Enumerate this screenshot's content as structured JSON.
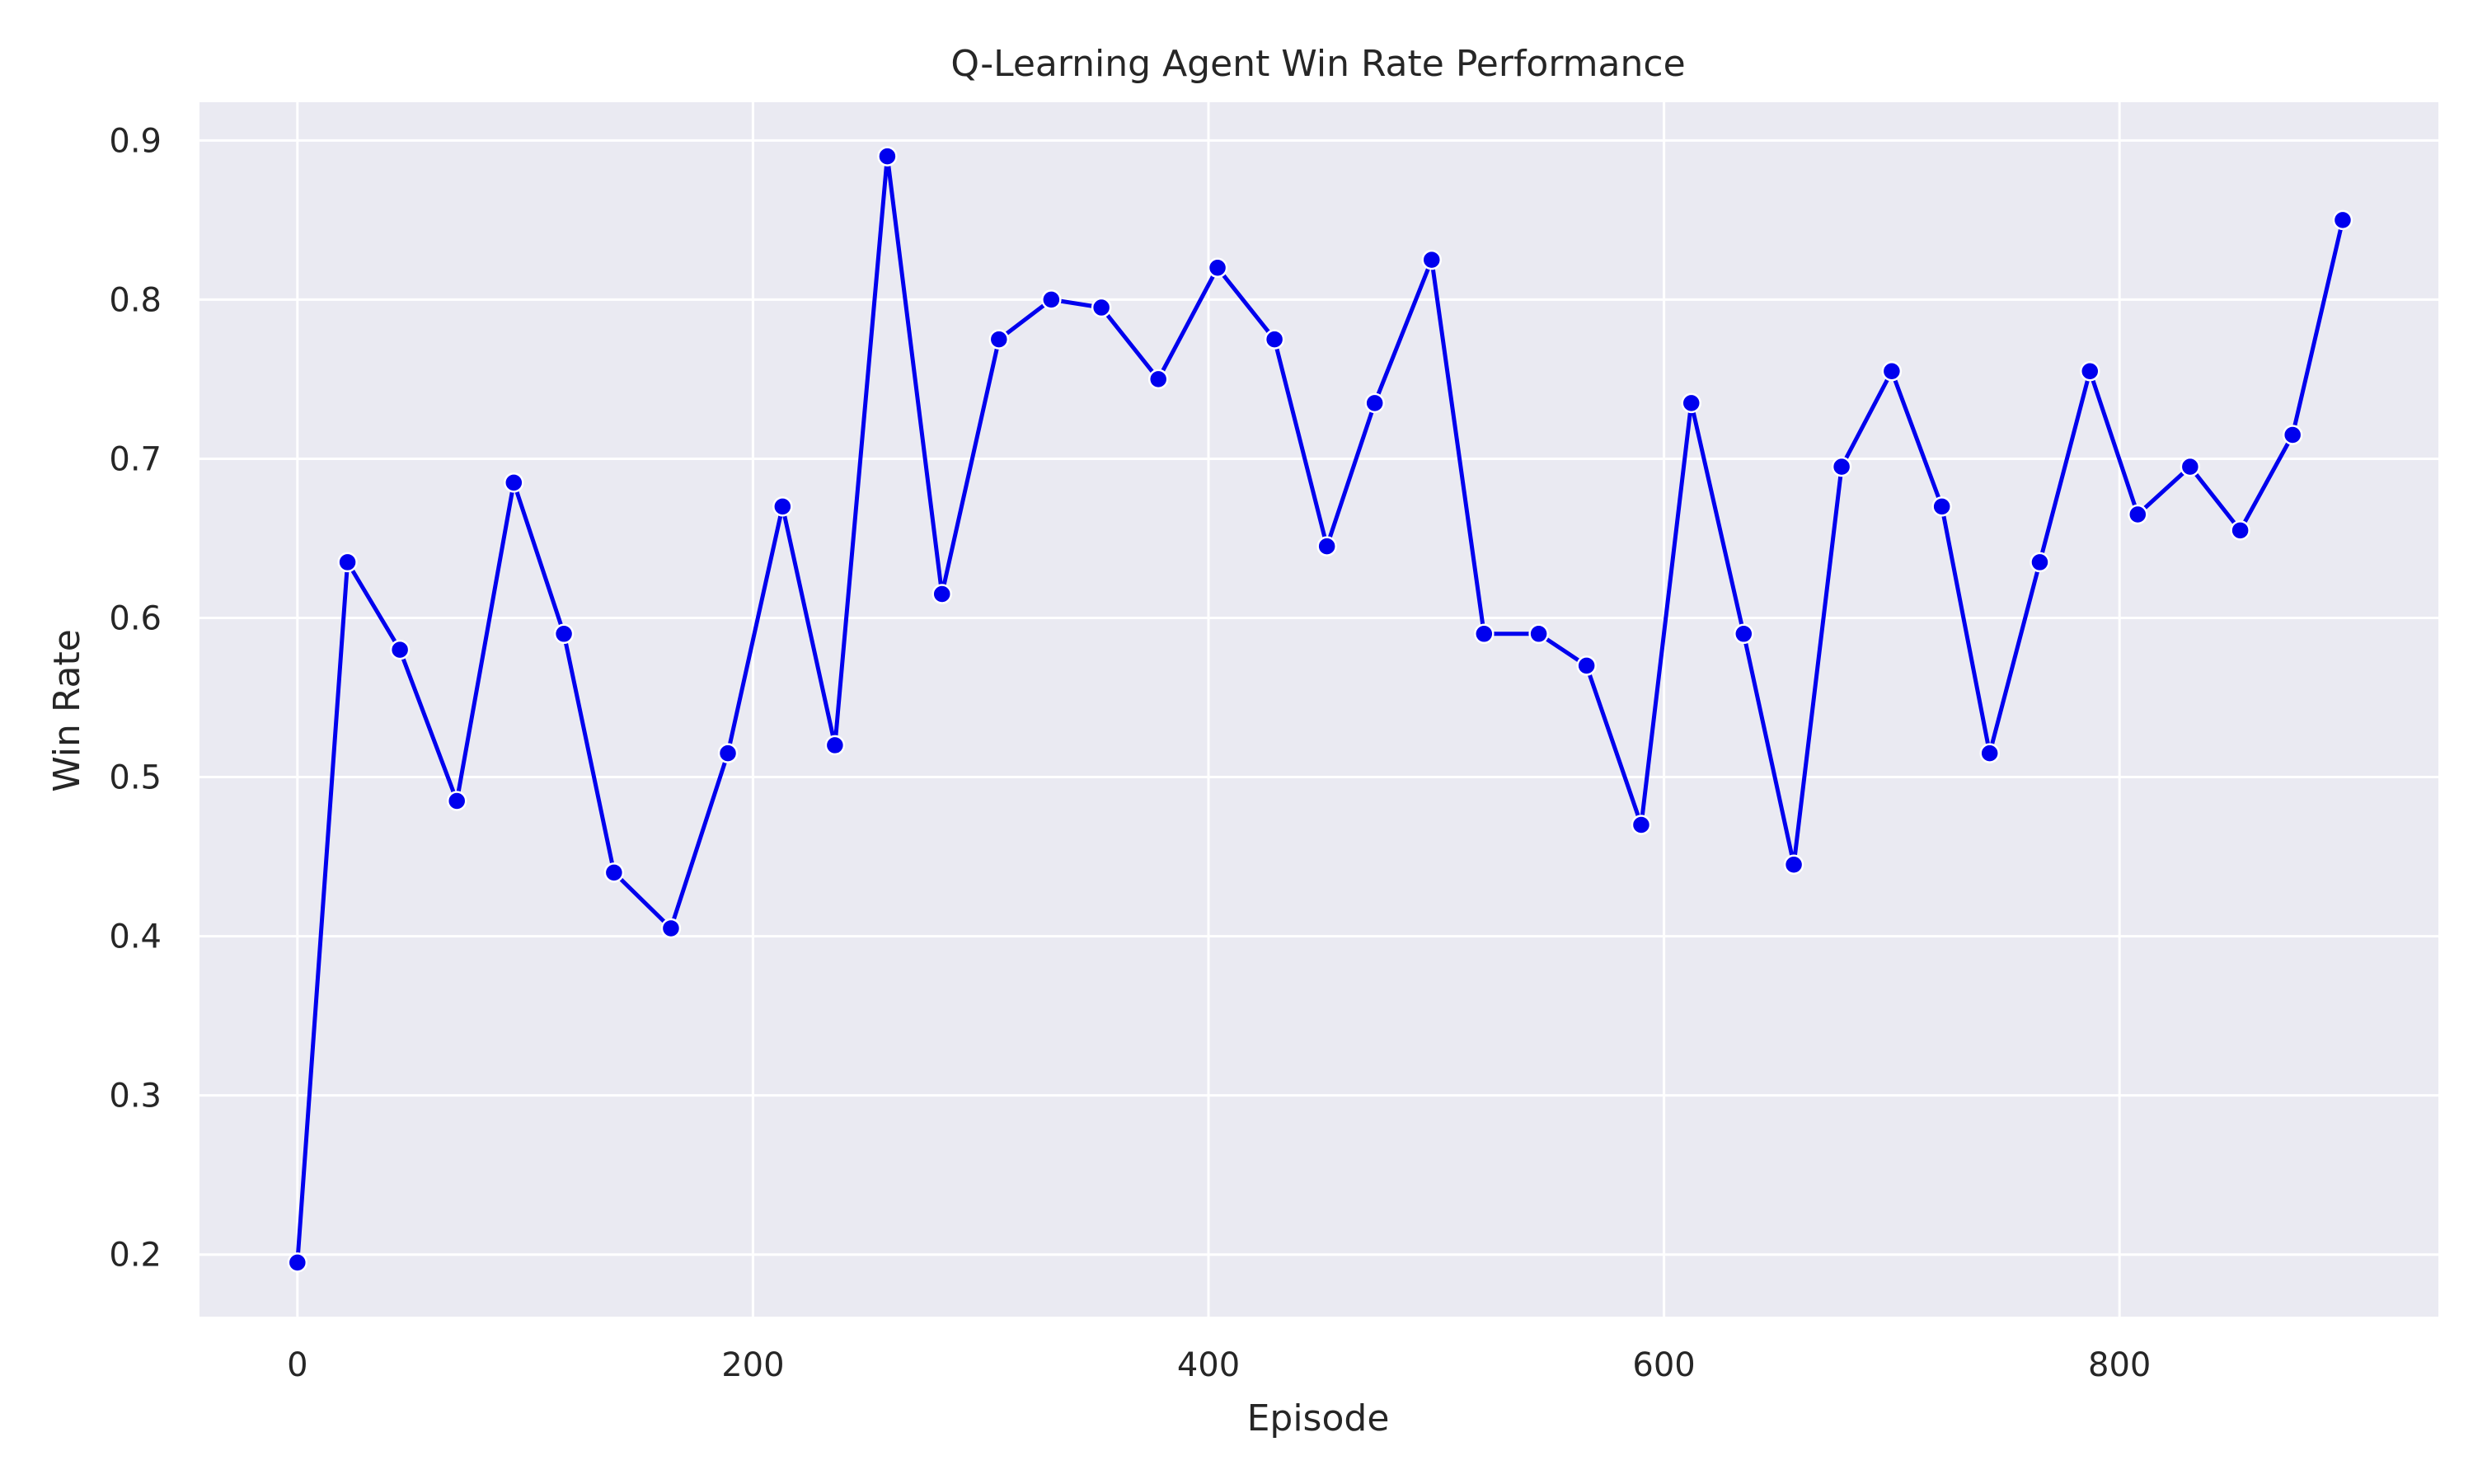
{
  "chart_data": {
    "type": "line",
    "title": "Q-Learning Agent Win Rate Performance",
    "xlabel": "Episode",
    "ylabel": "Win Rate",
    "xlim": [
      -43,
      940
    ],
    "ylim": [
      0.161,
      0.924
    ],
    "xticks": [
      0,
      200,
      400,
      600,
      800
    ],
    "yticks": [
      0.2,
      0.3,
      0.4,
      0.5,
      0.6,
      0.7,
      0.8,
      0.9
    ],
    "grid": true,
    "legend": "none",
    "colors": {
      "line": "#0000ee",
      "marker": "#0000ee",
      "marker_edge": "#ffffff",
      "plot_bg": "#eaeaf2",
      "grid": "#ffffff",
      "text": "#262626"
    },
    "series": [
      {
        "x": [
          0,
          22,
          45,
          70,
          95,
          117,
          139,
          164,
          189,
          213,
          236,
          259,
          283,
          308,
          331,
          353,
          378,
          404,
          429,
          452,
          473,
          498,
          521,
          545,
          566,
          590,
          612,
          635,
          657,
          678,
          700,
          722,
          743,
          765,
          787,
          808,
          831,
          853,
          876,
          898
        ],
        "y": [
          0.195,
          0.635,
          0.58,
          0.485,
          0.685,
          0.59,
          0.44,
          0.405,
          0.515,
          0.67,
          0.52,
          0.89,
          0.615,
          0.775,
          0.8,
          0.795,
          0.75,
          0.82,
          0.775,
          0.645,
          0.735,
          0.825,
          0.59,
          0.59,
          0.57,
          0.47,
          0.735,
          0.59,
          0.445,
          0.695,
          0.755,
          0.67,
          0.515,
          0.635,
          0.755,
          0.665,
          0.695,
          0.655,
          0.715,
          0.85
        ]
      }
    ]
  }
}
